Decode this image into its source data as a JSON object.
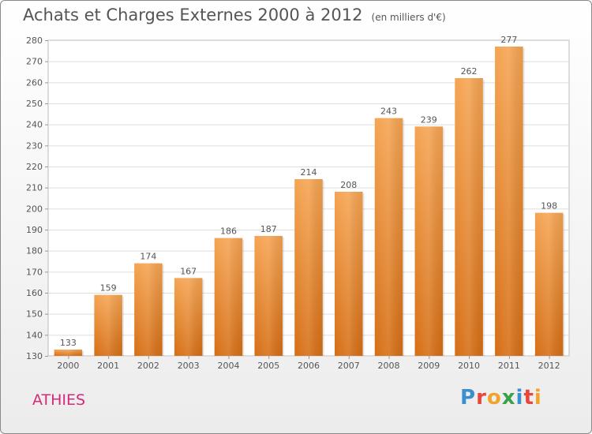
{
  "title": "Achats et Charges Externes 2000 à 2012",
  "unit": "(en milliers d'€)",
  "place": "ATHIES",
  "logo": "Proxiti",
  "colors": {
    "bar_top": "#f5a452",
    "bar_bottom": "#d66e14",
    "text": "#555555",
    "place": "#d42c7a",
    "grid": "#dddddd",
    "logo": [
      "#3a8fd0",
      "#e8453c",
      "#f1a32a",
      "#3aa14a",
      "#3a8fd0",
      "#e8453c",
      "#f1a32a"
    ]
  },
  "chart_data": {
    "type": "bar",
    "categories": [
      "2000",
      "2001",
      "2002",
      "2003",
      "2004",
      "2005",
      "2006",
      "2007",
      "2008",
      "2009",
      "2010",
      "2011",
      "2012"
    ],
    "values": [
      133,
      159,
      174,
      167,
      186,
      187,
      214,
      208,
      243,
      239,
      262,
      277,
      198
    ],
    "ylim": [
      130,
      280
    ],
    "yticks": [
      130,
      140,
      150,
      160,
      170,
      180,
      190,
      200,
      210,
      220,
      230,
      240,
      250,
      260,
      270,
      280
    ],
    "grid": true,
    "legend": "none"
  }
}
